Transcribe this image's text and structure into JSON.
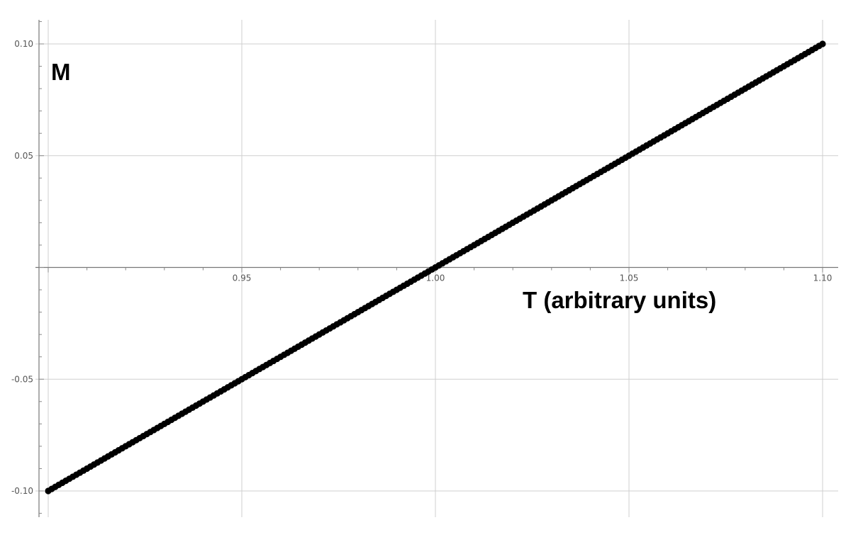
{
  "chart_data": {
    "type": "scatter",
    "title": "",
    "xlabel": "T (arbitrary units)",
    "ylabel": "M",
    "xlim": [
      0.9,
      1.1
    ],
    "ylim": [
      -0.11,
      0.11
    ],
    "grid": true,
    "x_ticks": [
      {
        "value": 0.95,
        "label": "0.95"
      },
      {
        "value": 1.0,
        "label": "1.00"
      },
      {
        "value": 1.05,
        "label": "1.05"
      },
      {
        "value": 1.1,
        "label": "1.10"
      }
    ],
    "y_ticks": [
      {
        "value": 0.1,
        "label": "0.10"
      },
      {
        "value": 0.05,
        "label": "0.05"
      },
      {
        "value": -0.05,
        "label": "-0.05"
      },
      {
        "value": -0.1,
        "label": "-0.10"
      }
    ],
    "series": [
      {
        "color": "#000000",
        "x": [
          0.9,
          0.91,
          0.92,
          0.93,
          0.94,
          0.95,
          0.96,
          0.97,
          0.98,
          0.99,
          1.0,
          1.01,
          1.02,
          1.03,
          1.04,
          1.05,
          1.06,
          1.07,
          1.08,
          1.09,
          1.1
        ],
        "y": [
          -0.1,
          -0.09,
          -0.08,
          -0.07,
          -0.06,
          -0.05,
          -0.04,
          -0.03,
          -0.02,
          -0.01,
          0.0,
          0.01,
          0.02,
          0.03,
          0.04,
          0.05,
          0.06,
          0.07,
          0.08,
          0.09,
          0.1
        ]
      }
    ]
  }
}
